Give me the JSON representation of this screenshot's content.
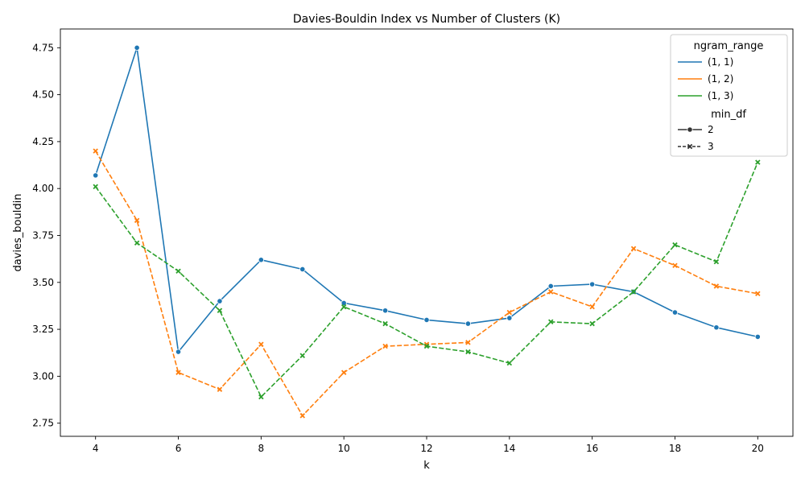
{
  "chart_data": {
    "type": "line",
    "title": "Davies-Bouldin Index vs Number of Clusters (K)",
    "xlabel": "k",
    "ylabel": "davies_bouldin",
    "xlim": [
      3.15,
      20.85
    ],
    "ylim": [
      2.68,
      4.85
    ],
    "x_ticks": [
      4,
      6,
      8,
      10,
      12,
      14,
      16,
      18,
      20
    ],
    "y_ticks": [
      2.75,
      3.0,
      3.25,
      3.5,
      3.75,
      4.0,
      4.25,
      4.5,
      4.75
    ],
    "grid": false,
    "legend_position": "top-right",
    "legend": {
      "hue_title": "ngram_range",
      "style_title": "min_df",
      "hue_entries": [
        {
          "label": "(1, 1)",
          "color": "#1f77b4"
        },
        {
          "label": "(1, 2)",
          "color": "#ff7f0e"
        },
        {
          "label": "(1, 3)",
          "color": "#2ca02c"
        }
      ],
      "style_entries": [
        {
          "label": "2",
          "marker": "circle",
          "dash": "solid"
        },
        {
          "label": "3",
          "marker": "x",
          "dash": "dashed"
        }
      ]
    },
    "x": [
      4,
      5,
      6,
      7,
      8,
      9,
      10,
      11,
      12,
      13,
      14,
      15,
      16,
      17,
      18,
      19,
      20
    ],
    "series": [
      {
        "ngram_range": "(1, 1)",
        "min_df": "2",
        "color": "#1f77b4",
        "marker": "circle",
        "dash": "solid",
        "values": [
          4.07,
          4.75,
          3.13,
          3.4,
          3.62,
          3.57,
          3.39,
          3.35,
          3.3,
          3.28,
          3.31,
          3.48,
          3.49,
          3.45,
          3.34,
          3.26,
          3.21
        ]
      },
      {
        "ngram_range": "(1, 2)",
        "min_df": "3",
        "color": "#ff7f0e",
        "marker": "x",
        "dash": "dashed",
        "values": [
          4.2,
          3.83,
          3.02,
          2.93,
          3.17,
          2.79,
          3.02,
          3.16,
          3.17,
          3.18,
          3.34,
          3.45,
          3.37,
          3.68,
          3.59,
          3.48,
          3.44
        ]
      },
      {
        "ngram_range": "(1, 3)",
        "min_df": "3",
        "color": "#2ca02c",
        "marker": "x",
        "dash": "dashed",
        "values": [
          4.01,
          3.71,
          3.56,
          3.35,
          2.89,
          3.11,
          3.37,
          3.28,
          3.16,
          3.13,
          3.07,
          3.29,
          3.28,
          3.45,
          3.7,
          3.61,
          4.14
        ]
      }
    ]
  }
}
